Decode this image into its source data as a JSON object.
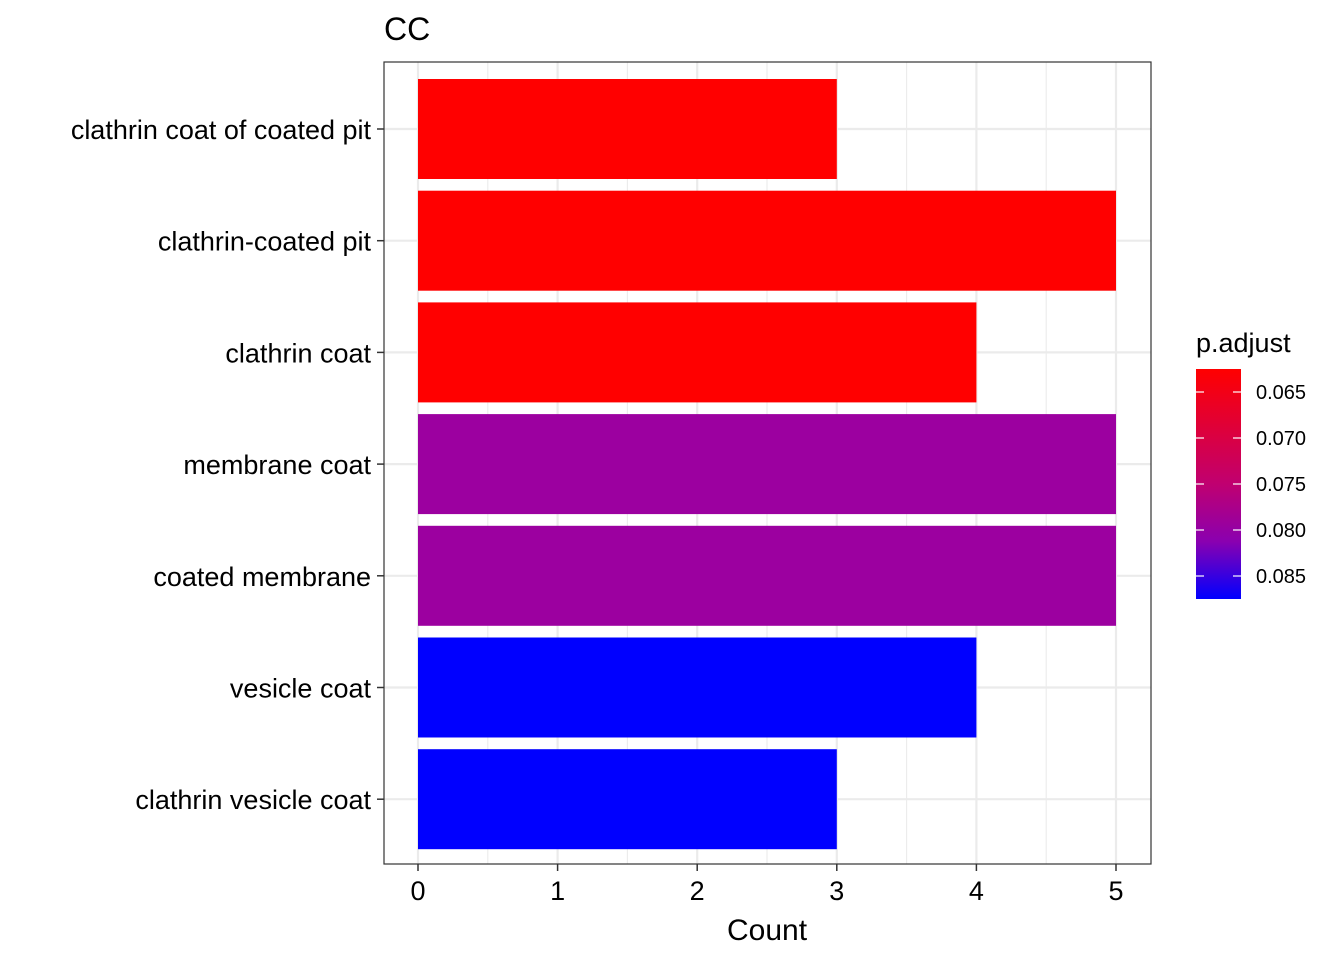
{
  "chart_data": {
    "type": "bar",
    "orientation": "horizontal",
    "title": "CC",
    "xlabel": "Count",
    "ylabel": "",
    "xlim": [
      0,
      5
    ],
    "x_ticks": [
      "0",
      "1",
      "2",
      "3",
      "4",
      "5"
    ],
    "grid": true,
    "legend": {
      "title": "p.adjust",
      "placement": "right",
      "type": "colorbar",
      "ticks": [
        "0.065",
        "0.070",
        "0.075",
        "0.080",
        "0.085"
      ],
      "low_color": "#ff0000",
      "high_color": "#0000ff",
      "range": [
        0.0625,
        0.0875
      ]
    },
    "categories": [
      "clathrin coat of coated pit",
      "clathrin-coated pit",
      "clathrin coat",
      "membrane coat",
      "coated membrane",
      "vesicle coat",
      "clathrin vesicle coat"
    ],
    "values": [
      3,
      5,
      4,
      5,
      5,
      4,
      3
    ],
    "p_adjust": [
      0.0625,
      0.0625,
      0.0625,
      0.0796,
      0.0796,
      0.0875,
      0.0875
    ],
    "colors": [
      "#ff0000",
      "#ff0000",
      "#ff0000",
      "#9c00a0",
      "#9c00a0",
      "#0000ff",
      "#0000ff"
    ]
  }
}
